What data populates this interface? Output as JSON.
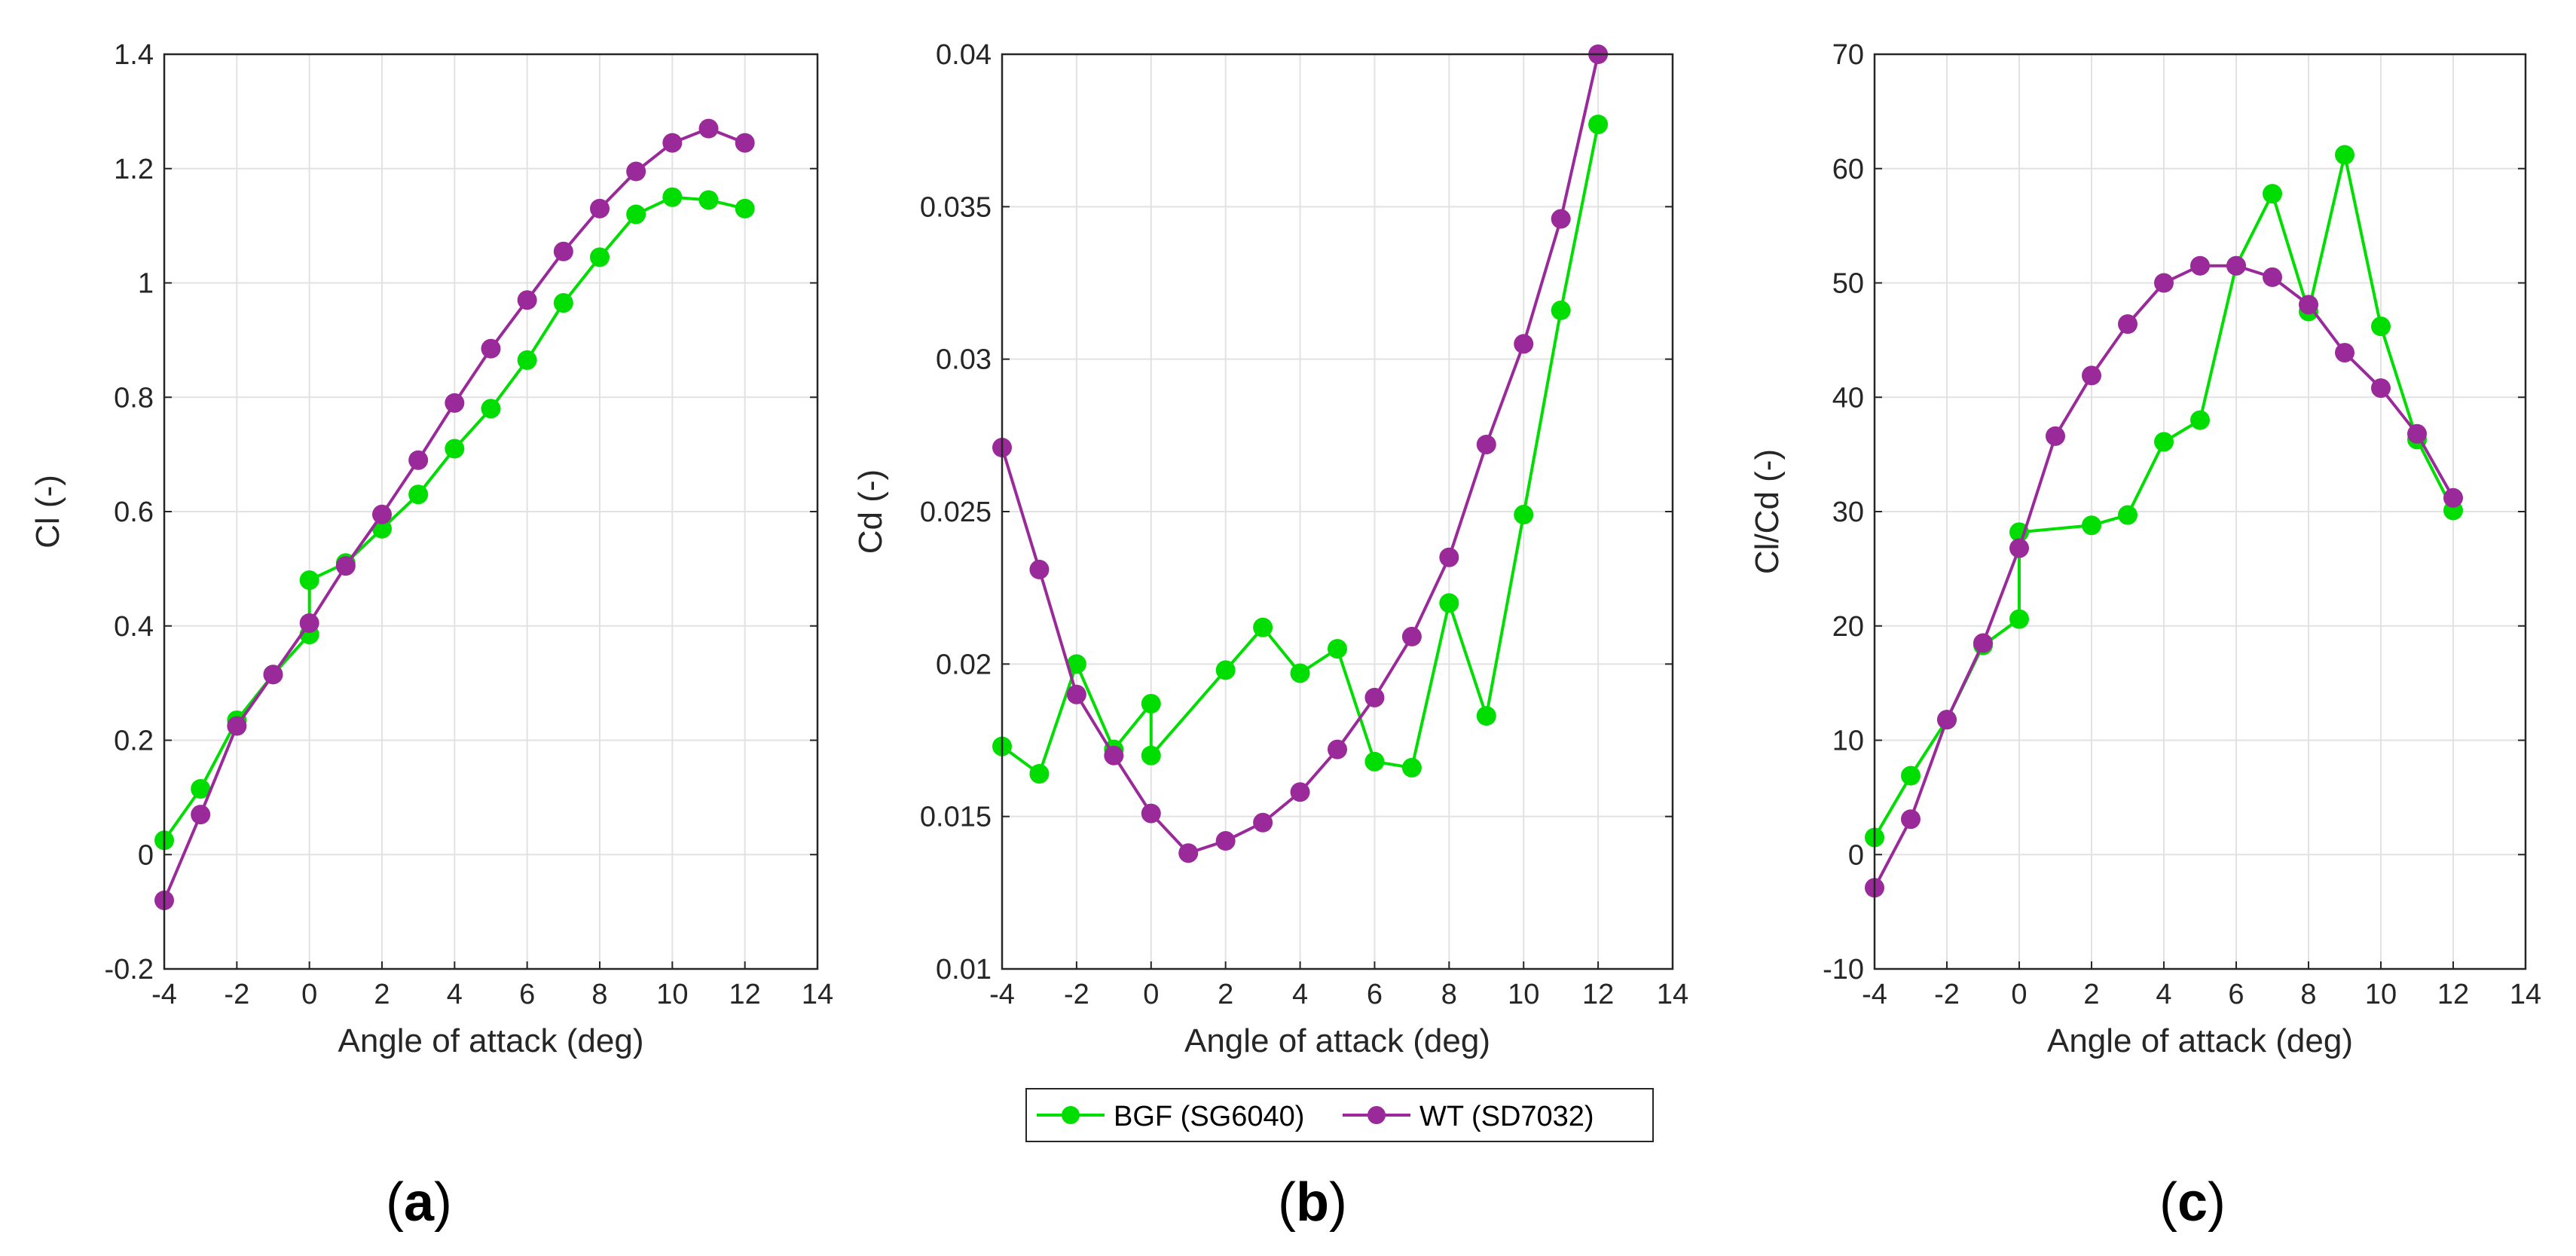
{
  "colors": {
    "bgf": "#00dd00",
    "wt": "#9a2a9a",
    "grid": "#e2e2e2",
    "axis": "#262626"
  },
  "legend": {
    "bgf_label": "BGF (SG6040)",
    "wt_label": "WT (SD7032)"
  },
  "chart_data": [
    {
      "id": "a",
      "type": "line",
      "caption_letter": "a",
      "xlabel": "Angle of attack (deg)",
      "ylabel": "Cl (-)",
      "xlim": [
        -4,
        14
      ],
      "ylim": [
        -0.2,
        1.4
      ],
      "xticks": [
        -4,
        -2,
        0,
        2,
        4,
        6,
        8,
        10,
        12,
        14
      ],
      "yticks": [
        -0.2,
        0,
        0.2,
        0.4,
        0.6,
        0.8,
        1,
        1.2,
        1.4
      ],
      "ytick_labels": [
        "-0.2",
        "0",
        "0.2",
        "0.4",
        "0.6",
        "0.8",
        "1",
        "1.2",
        "1.4"
      ],
      "series": [
        {
          "name": "BGF (SG6040)",
          "color_key": "bgf",
          "x": [
            -4,
            -3,
            -2,
            -1,
            0,
            0,
            1,
            2,
            3,
            4,
            5,
            6,
            7,
            8,
            9,
            10,
            11,
            12
          ],
          "y": [
            0.025,
            0.115,
            0.235,
            0.315,
            0.385,
            0.48,
            0.51,
            0.57,
            0.63,
            0.71,
            0.78,
            0.865,
            0.965,
            1.045,
            1.12,
            1.15,
            1.145,
            1.13
          ]
        },
        {
          "name": "WT (SD7032)",
          "color_key": "wt",
          "x": [
            -4,
            -3,
            -2,
            -1,
            0,
            1,
            2,
            3,
            4,
            5,
            6,
            7,
            8,
            9,
            10,
            11,
            12
          ],
          "y": [
            -0.08,
            0.07,
            0.225,
            0.315,
            0.405,
            0.505,
            0.595,
            0.69,
            0.79,
            0.885,
            0.97,
            1.055,
            1.13,
            1.195,
            1.245,
            1.27,
            1.245
          ]
        }
      ]
    },
    {
      "id": "b",
      "type": "line",
      "caption_letter": "b",
      "xlabel": "Angle of attack (deg)",
      "ylabel": "Cd (-)",
      "xlim": [
        -4,
        14
      ],
      "ylim": [
        0.01,
        0.04
      ],
      "xticks": [
        -4,
        -2,
        0,
        2,
        4,
        6,
        8,
        10,
        12,
        14
      ],
      "yticks": [
        0.01,
        0.015,
        0.02,
        0.025,
        0.03,
        0.035,
        0.04
      ],
      "ytick_labels": [
        "0.01",
        "0.015",
        "0.02",
        "0.025",
        "0.03",
        "0.035",
        "0.04"
      ],
      "series": [
        {
          "name": "BGF (SG6040)",
          "color_key": "bgf",
          "x": [
            -4,
            -3,
            -2,
            -1,
            0,
            0,
            2,
            3,
            4,
            5,
            6,
            7,
            8,
            9,
            10,
            11,
            12
          ],
          "y": [
            0.0173,
            0.0164,
            0.02,
            0.0172,
            0.0187,
            0.017,
            0.0198,
            0.0212,
            0.0197,
            0.0205,
            0.0168,
            0.0166,
            0.022,
            0.0183,
            0.0249,
            0.0316,
            0.0377
          ]
        },
        {
          "name": "WT (SD7032)",
          "color_key": "wt",
          "x": [
            -4,
            -3,
            -2,
            -1,
            0,
            1,
            2,
            3,
            4,
            5,
            6,
            7,
            8,
            9,
            10,
            11,
            12
          ],
          "y": [
            0.0271,
            0.0231,
            0.019,
            0.017,
            0.0151,
            0.0138,
            0.0142,
            0.0148,
            0.0158,
            0.0172,
            0.0189,
            0.0209,
            0.0235,
            0.0272,
            0.0305,
            0.0346,
            0.04
          ]
        }
      ]
    },
    {
      "id": "c",
      "type": "line",
      "caption_letter": "c",
      "xlabel": "Angle of attack (deg)",
      "ylabel": "Cl/Cd (-)",
      "xlim": [
        -4,
        14
      ],
      "ylim": [
        -10,
        70
      ],
      "xticks": [
        -4,
        -2,
        0,
        2,
        4,
        6,
        8,
        10,
        12,
        14
      ],
      "yticks": [
        -10,
        0,
        10,
        20,
        30,
        40,
        50,
        60,
        70
      ],
      "ytick_labels": [
        "-10",
        "0",
        "10",
        "20",
        "30",
        "40",
        "50",
        "60",
        "70"
      ],
      "series": [
        {
          "name": "BGF (SG6040)",
          "color_key": "bgf",
          "x": [
            -4,
            -3,
            -2,
            -1,
            0,
            0,
            2,
            3,
            4,
            5,
            6,
            7,
            8,
            9,
            10,
            11,
            12
          ],
          "y": [
            1.5,
            6.9,
            11.8,
            18.3,
            20.6,
            28.2,
            28.8,
            29.7,
            36.1,
            38.0,
            51.5,
            57.8,
            47.5,
            61.2,
            46.2,
            36.3,
            30.1
          ]
        },
        {
          "name": "WT (SD7032)",
          "color_key": "wt",
          "x": [
            -4,
            -3,
            -2,
            -1,
            0,
            1,
            2,
            3,
            4,
            5,
            6,
            7,
            8,
            9,
            10,
            11,
            12
          ],
          "y": [
            -2.9,
            3.1,
            11.8,
            18.5,
            26.8,
            36.6,
            41.9,
            46.4,
            50.0,
            51.5,
            51.5,
            50.5,
            48.1,
            43.9,
            40.8,
            36.8,
            31.2
          ]
        }
      ]
    }
  ]
}
